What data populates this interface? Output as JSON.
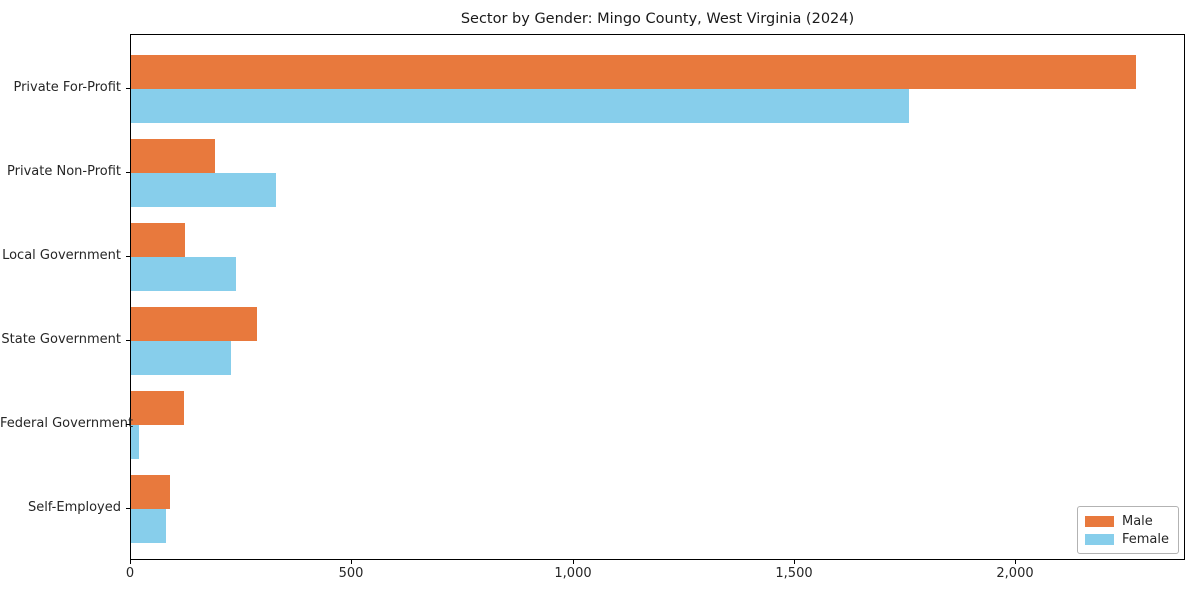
{
  "chart_data": {
    "type": "bar",
    "orientation": "horizontal",
    "title": "Sector by Gender: Mingo County, West Virginia (2024)",
    "xlabel": "",
    "ylabel": "",
    "categories": [
      "Private For-Profit",
      "Private Non-Profit",
      "Local Government",
      "State Government",
      "Federal Government",
      "Self-Employed"
    ],
    "series": [
      {
        "name": "Male",
        "color": "#e8793d",
        "values": [
          2271,
          189,
          121,
          284,
          119,
          89
        ]
      },
      {
        "name": "Female",
        "color": "#87ceeb",
        "values": [
          1757,
          327,
          238,
          225,
          17,
          78
        ]
      }
    ],
    "xlim": [
      0,
      2384
    ],
    "x_ticks": [
      0,
      500,
      1000,
      1500,
      2000
    ],
    "x_tick_labels": [
      "0",
      "500",
      "1,000",
      "1,500",
      "2,000"
    ],
    "grid": false,
    "legend": {
      "position": "lower right",
      "entries": [
        "Male",
        "Female"
      ]
    },
    "axis_color": "#000000",
    "background_color": "#ffffff"
  }
}
